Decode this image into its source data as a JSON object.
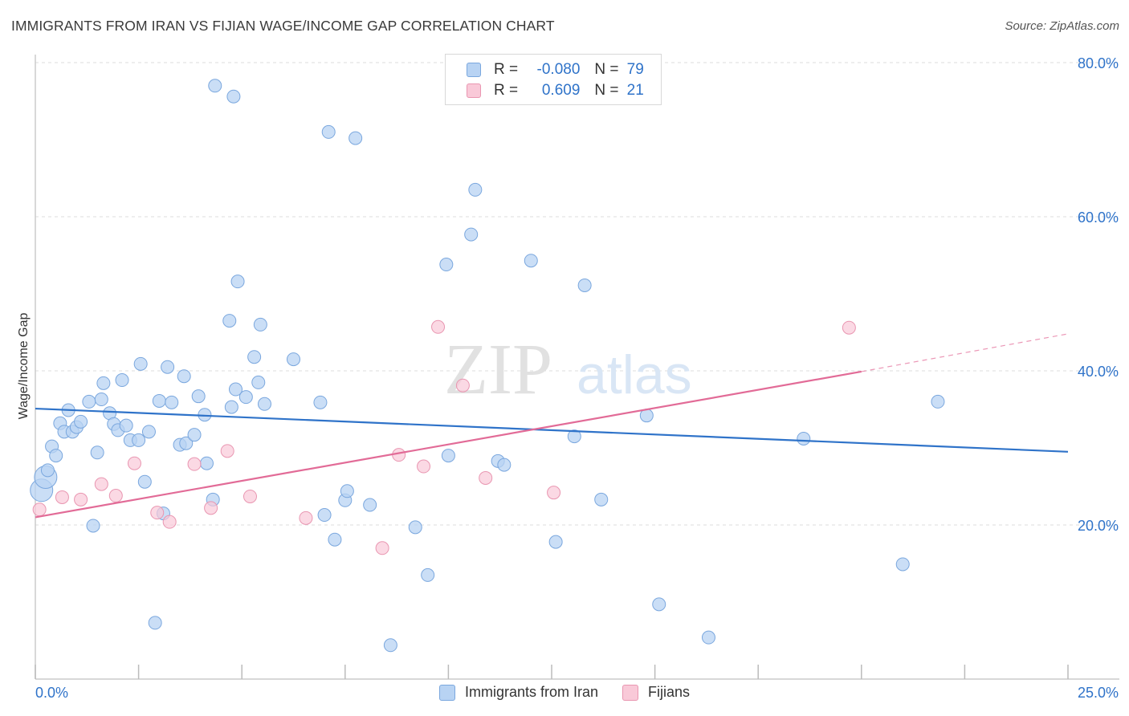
{
  "header": {
    "title": "IMMIGRANTS FROM IRAN VS FIJIAN WAGE/INCOME GAP CORRELATION CHART",
    "source": "Source: ZipAtlas.com"
  },
  "watermark": {
    "zip": "ZIP",
    "atlas": "atlas"
  },
  "legend_top": [
    {
      "r_label": "R =",
      "r_value": "-0.080",
      "n_label": "N =",
      "n_value": "79"
    },
    {
      "r_label": "R =",
      "r_value": "0.609",
      "n_label": "N =",
      "n_value": "21"
    }
  ],
  "colors": {
    "iran_fill": "#b8d3f3",
    "iran_stroke": "#7aa7de",
    "iran_line": "#2f73c9",
    "fiji_fill": "#f9c9d8",
    "fiji_stroke": "#e996b1",
    "fiji_line": "#e26b97",
    "tick_label": "#2f73c9",
    "grid": "#dddddd"
  },
  "chart_data": {
    "type": "scatter",
    "title": "IMMIGRANTS FROM IRAN VS FIJIAN WAGE/INCOME GAP CORRELATION CHART",
    "xlabel": "",
    "ylabel": "Wage/Income Gap",
    "xlim": [
      0,
      25
    ],
    "ylim": [
      0,
      80
    ],
    "x_tick_labels": [
      "0.0%",
      "25.0%"
    ],
    "y_ticks": [
      20,
      40,
      60,
      80
    ],
    "y_tick_labels": [
      "20.0%",
      "40.0%",
      "60.0%",
      "80.0%"
    ],
    "grid": true,
    "legend_position": "bottom-center",
    "series": [
      {
        "name": "Immigrants from Iran",
        "r": -0.08,
        "n": 79,
        "trend": {
          "x": [
            0,
            25
          ],
          "y": [
            35.1,
            29.5
          ]
        },
        "points": [
          [
            0.15,
            24.5
          ],
          [
            0.25,
            26.2
          ],
          [
            0.3,
            27.1
          ],
          [
            0.4,
            30.2
          ],
          [
            0.5,
            29.0
          ],
          [
            0.6,
            33.2
          ],
          [
            0.7,
            32.1
          ],
          [
            0.8,
            34.9
          ],
          [
            0.9,
            32.1
          ],
          [
            1.0,
            32.7
          ],
          [
            1.1,
            33.4
          ],
          [
            1.3,
            36.0
          ],
          [
            1.4,
            19.9
          ],
          [
            1.5,
            29.4
          ],
          [
            1.6,
            36.3
          ],
          [
            1.65,
            38.4
          ],
          [
            1.8,
            34.5
          ],
          [
            1.9,
            33.1
          ],
          [
            2.0,
            32.3
          ],
          [
            2.1,
            38.8
          ],
          [
            2.2,
            32.9
          ],
          [
            2.3,
            31.0
          ],
          [
            2.5,
            31.0
          ],
          [
            2.55,
            40.9
          ],
          [
            2.65,
            25.6
          ],
          [
            2.75,
            32.1
          ],
          [
            2.9,
            7.3
          ],
          [
            3.0,
            36.1
          ],
          [
            3.1,
            21.5
          ],
          [
            3.2,
            40.5
          ],
          [
            3.3,
            35.9
          ],
          [
            3.5,
            30.4
          ],
          [
            3.6,
            39.3
          ],
          [
            3.65,
            30.6
          ],
          [
            3.85,
            31.7
          ],
          [
            3.95,
            36.7
          ],
          [
            4.1,
            34.3
          ],
          [
            4.15,
            28.0
          ],
          [
            4.3,
            23.3
          ],
          [
            4.35,
            77.0
          ],
          [
            4.7,
            46.5
          ],
          [
            4.75,
            35.3
          ],
          [
            4.85,
            37.6
          ],
          [
            4.8,
            75.6
          ],
          [
            4.9,
            51.6
          ],
          [
            5.1,
            36.6
          ],
          [
            5.3,
            41.8
          ],
          [
            5.4,
            38.5
          ],
          [
            5.45,
            46.0
          ],
          [
            5.55,
            35.7
          ],
          [
            6.25,
            41.5
          ],
          [
            6.9,
            35.9
          ],
          [
            7.0,
            21.3
          ],
          [
            7.1,
            71.0
          ],
          [
            7.25,
            18.1
          ],
          [
            7.5,
            23.2
          ],
          [
            7.55,
            24.4
          ],
          [
            7.75,
            70.2
          ],
          [
            8.1,
            22.6
          ],
          [
            8.6,
            4.4
          ],
          [
            9.2,
            19.7
          ],
          [
            9.5,
            13.5
          ],
          [
            9.95,
            53.8
          ],
          [
            10.0,
            29.0
          ],
          [
            10.55,
            57.7
          ],
          [
            10.65,
            63.5
          ],
          [
            11.2,
            28.3
          ],
          [
            11.35,
            27.8
          ],
          [
            12.0,
            54.3
          ],
          [
            12.6,
            17.8
          ],
          [
            13.05,
            31.5
          ],
          [
            13.3,
            51.1
          ],
          [
            13.7,
            23.3
          ],
          [
            14.8,
            34.2
          ],
          [
            15.1,
            9.7
          ],
          [
            16.3,
            5.4
          ],
          [
            18.6,
            31.2
          ],
          [
            21.0,
            14.9
          ],
          [
            21.85,
            36.0
          ]
        ],
        "big_points": [
          [
            0.15,
            24.5
          ],
          [
            0.25,
            26.2
          ]
        ]
      },
      {
        "name": "Fijians",
        "r": 0.609,
        "n": 21,
        "trend": {
          "x": [
            0,
            20.0
          ],
          "y": [
            21.0,
            39.9
          ]
        },
        "trend_dashed": {
          "x": [
            20.0,
            25.0
          ],
          "y": [
            39.9,
            44.8
          ]
        },
        "points": [
          [
            0.1,
            22.0
          ],
          [
            0.65,
            23.6
          ],
          [
            1.1,
            23.3
          ],
          [
            1.6,
            25.3
          ],
          [
            1.95,
            23.8
          ],
          [
            2.4,
            28.0
          ],
          [
            2.95,
            21.6
          ],
          [
            3.25,
            20.4
          ],
          [
            3.85,
            27.9
          ],
          [
            4.25,
            22.2
          ],
          [
            4.65,
            29.6
          ],
          [
            5.2,
            23.7
          ],
          [
            6.55,
            20.9
          ],
          [
            8.4,
            17.0
          ],
          [
            8.8,
            29.1
          ],
          [
            9.4,
            27.6
          ],
          [
            9.75,
            45.7
          ],
          [
            10.35,
            38.1
          ],
          [
            10.9,
            26.1
          ],
          [
            12.55,
            24.2
          ],
          [
            19.7,
            45.6
          ]
        ]
      }
    ]
  },
  "legend_bottom": [
    "Immigrants from Iran",
    "Fijians"
  ]
}
